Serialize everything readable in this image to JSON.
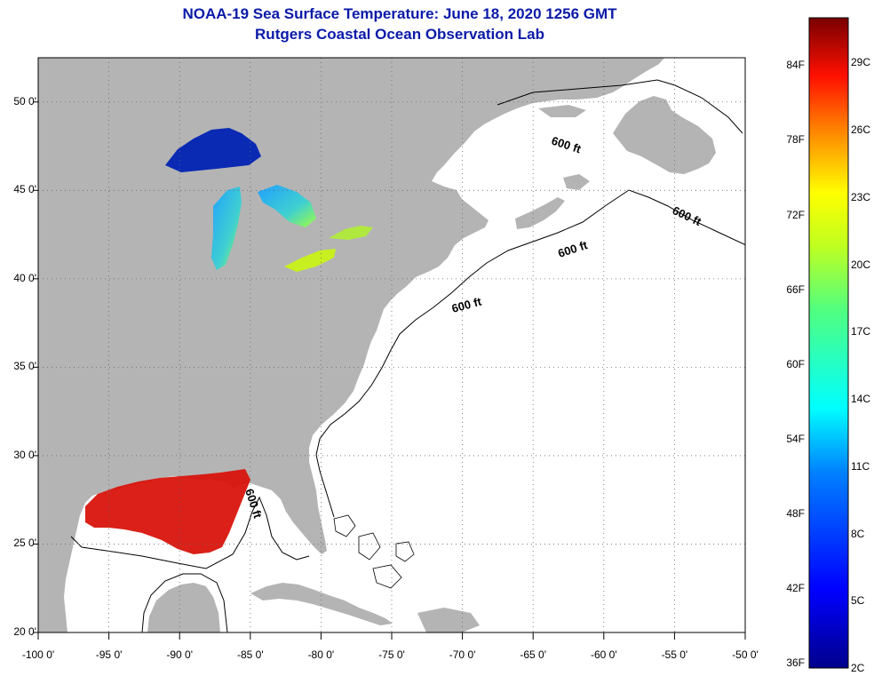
{
  "title": {
    "line1": "NOAA-19 Sea Surface Temperature:  June 18, 2020 1256 GMT",
    "line2": "Rutgers Coastal Ocean Observation Lab"
  },
  "axes": {
    "lat_labels": [
      "50 0'",
      "45 0'",
      "40 0'",
      "35 0'",
      "30 0'",
      "25 0'",
      "20 0'"
    ],
    "lon_labels": [
      "-100 0'",
      "-95 0'",
      "-90 0'",
      "-85 0'",
      "-80 0'",
      "-75 0'",
      "-70 0'",
      "-65 0'",
      "-60 0'",
      "-55 0'",
      "-50 0'"
    ]
  },
  "map": {
    "lat_range": [
      20,
      52.5
    ],
    "lon_range": [
      -100,
      -50
    ],
    "isobath_label": "600 ft",
    "colors": {
      "land": "#b4b4b4",
      "ocean": "#ffffff",
      "gulf_sst": "#d8140c"
    }
  },
  "colorbar": {
    "fahrenheit": [
      "84F",
      "78F",
      "72F",
      "66F",
      "60F",
      "54F",
      "48F",
      "42F",
      "36F"
    ],
    "celsius": [
      "29C",
      "26C",
      "23C",
      "20C",
      "17C",
      "14C",
      "11C",
      "8C",
      "5C",
      "2C"
    ],
    "range_c": [
      2,
      31
    ]
  }
}
